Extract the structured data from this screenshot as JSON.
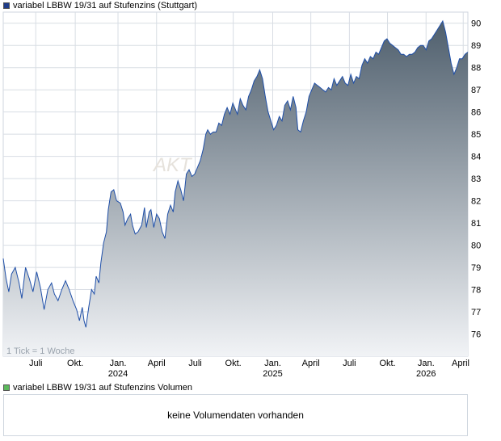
{
  "price_legend": {
    "label": "variabel LBBW 19/31 auf Stufenzins (Stuttgart)",
    "color": "#1f3d8a"
  },
  "volume_legend": {
    "label": "variabel LBBW 19/31 auf Stufenzins Volumen",
    "color": "#5cb85c"
  },
  "tick_note": "1 Tick = 1 Woche",
  "watermark": "AKT",
  "volume_message": "keine Volumendaten vorhanden",
  "colors": {
    "line": "#1f4fa8",
    "area_top": "#4f5f6d",
    "area_bottom": "#f1f3f6",
    "grid": "#d8dde4"
  },
  "chart_data": {
    "type": "area",
    "title": "variabel LBBW 19/31 auf Stufenzins (Stuttgart)",
    "ylim": [
      75,
      90.5
    ],
    "y_ticks": [
      76,
      77,
      78,
      79,
      80,
      81,
      82,
      83,
      84,
      85,
      86,
      87,
      88,
      89,
      90
    ],
    "x_ticks": [
      {
        "label": "Juli",
        "year": "",
        "pos": 0.07
      },
      {
        "label": "Okt.",
        "year": "",
        "pos": 0.155
      },
      {
        "label": "Jan.",
        "year": "2024",
        "pos": 0.247
      },
      {
        "label": "April",
        "year": "",
        "pos": 0.33
      },
      {
        "label": "Juli",
        "year": "",
        "pos": 0.413
      },
      {
        "label": "Okt.",
        "year": "",
        "pos": 0.495
      },
      {
        "label": "Jan.",
        "year": "2025",
        "pos": 0.58
      },
      {
        "label": "April",
        "year": "",
        "pos": 0.662
      },
      {
        "label": "Juli",
        "year": "",
        "pos": 0.745
      },
      {
        "label": "Okt.",
        "year": "",
        "pos": 0.827
      },
      {
        "label": "Jan.",
        "year": "2026",
        "pos": 0.91
      },
      {
        "label": "April",
        "year": "",
        "pos": 0.99
      }
    ],
    "series": [
      {
        "values": [
          [
            0.0,
            79.4
          ],
          [
            0.006,
            78.5
          ],
          [
            0.012,
            77.9
          ],
          [
            0.018,
            78.7
          ],
          [
            0.026,
            79.0
          ],
          [
            0.034,
            78.3
          ],
          [
            0.04,
            77.6
          ],
          [
            0.048,
            79.0
          ],
          [
            0.056,
            78.5
          ],
          [
            0.064,
            77.9
          ],
          [
            0.072,
            78.8
          ],
          [
            0.08,
            78.1
          ],
          [
            0.088,
            77.1
          ],
          [
            0.096,
            78.0
          ],
          [
            0.104,
            78.3
          ],
          [
            0.11,
            77.8
          ],
          [
            0.118,
            77.5
          ],
          [
            0.126,
            78.0
          ],
          [
            0.134,
            78.4
          ],
          [
            0.142,
            78.0
          ],
          [
            0.15,
            77.5
          ],
          [
            0.158,
            77.1
          ],
          [
            0.164,
            76.6
          ],
          [
            0.17,
            77.2
          ],
          [
            0.174,
            76.6
          ],
          [
            0.178,
            76.3
          ],
          [
            0.184,
            77.2
          ],
          [
            0.19,
            78.0
          ],
          [
            0.196,
            77.8
          ],
          [
            0.2,
            78.6
          ],
          [
            0.206,
            78.3
          ],
          [
            0.21,
            79.2
          ],
          [
            0.216,
            80.1
          ],
          [
            0.222,
            80.6
          ],
          [
            0.226,
            81.6
          ],
          [
            0.232,
            82.4
          ],
          [
            0.238,
            82.5
          ],
          [
            0.244,
            82.0
          ],
          [
            0.252,
            81.9
          ],
          [
            0.258,
            81.5
          ],
          [
            0.262,
            80.9
          ],
          [
            0.268,
            81.2
          ],
          [
            0.274,
            81.4
          ],
          [
            0.278,
            80.9
          ],
          [
            0.284,
            80.5
          ],
          [
            0.29,
            80.6
          ],
          [
            0.298,
            80.9
          ],
          [
            0.304,
            81.7
          ],
          [
            0.308,
            80.8
          ],
          [
            0.314,
            81.5
          ],
          [
            0.318,
            81.6
          ],
          [
            0.324,
            80.8
          ],
          [
            0.33,
            81.4
          ],
          [
            0.336,
            81.2
          ],
          [
            0.342,
            80.6
          ],
          [
            0.348,
            80.3
          ],
          [
            0.354,
            81.4
          ],
          [
            0.36,
            81.8
          ],
          [
            0.366,
            81.5
          ],
          [
            0.37,
            82.4
          ],
          [
            0.376,
            82.9
          ],
          [
            0.382,
            82.5
          ],
          [
            0.388,
            82.0
          ],
          [
            0.394,
            83.2
          ],
          [
            0.4,
            83.4
          ],
          [
            0.406,
            83.1
          ],
          [
            0.412,
            83.2
          ],
          [
            0.418,
            83.5
          ],
          [
            0.424,
            83.8
          ],
          [
            0.43,
            84.3
          ],
          [
            0.436,
            85.0
          ],
          [
            0.44,
            85.2
          ],
          [
            0.446,
            85.0
          ],
          [
            0.452,
            85.1
          ],
          [
            0.458,
            85.1
          ],
          [
            0.464,
            85.5
          ],
          [
            0.47,
            85.4
          ],
          [
            0.476,
            85.9
          ],
          [
            0.482,
            86.2
          ],
          [
            0.488,
            85.9
          ],
          [
            0.494,
            86.4
          ],
          [
            0.498,
            86.2
          ],
          [
            0.504,
            85.9
          ],
          [
            0.51,
            86.6
          ],
          [
            0.516,
            86.3
          ],
          [
            0.522,
            86.1
          ],
          [
            0.528,
            86.7
          ],
          [
            0.534,
            87.0
          ],
          [
            0.54,
            87.4
          ],
          [
            0.546,
            87.6
          ],
          [
            0.552,
            87.9
          ],
          [
            0.558,
            87.5
          ],
          [
            0.564,
            86.7
          ],
          [
            0.57,
            86.0
          ],
          [
            0.576,
            85.6
          ],
          [
            0.582,
            85.2
          ],
          [
            0.588,
            85.4
          ],
          [
            0.594,
            85.8
          ],
          [
            0.6,
            85.6
          ],
          [
            0.606,
            86.3
          ],
          [
            0.612,
            86.5
          ],
          [
            0.618,
            86.1
          ],
          [
            0.624,
            86.7
          ],
          [
            0.63,
            86.2
          ],
          [
            0.634,
            85.2
          ],
          [
            0.64,
            85.1
          ],
          [
            0.646,
            85.6
          ],
          [
            0.652,
            86.0
          ],
          [
            0.658,
            86.7
          ],
          [
            0.664,
            87.0
          ],
          [
            0.67,
            87.3
          ],
          [
            0.676,
            87.2
          ],
          [
            0.682,
            87.1
          ],
          [
            0.688,
            87.0
          ],
          [
            0.694,
            86.9
          ],
          [
            0.7,
            87.1
          ],
          [
            0.706,
            87.0
          ],
          [
            0.712,
            87.5
          ],
          [
            0.718,
            87.2
          ],
          [
            0.724,
            87.4
          ],
          [
            0.73,
            87.6
          ],
          [
            0.736,
            87.3
          ],
          [
            0.742,
            87.2
          ],
          [
            0.748,
            87.7
          ],
          [
            0.754,
            87.3
          ],
          [
            0.76,
            87.6
          ],
          [
            0.766,
            87.5
          ],
          [
            0.772,
            88.1
          ],
          [
            0.778,
            88.4
          ],
          [
            0.784,
            88.2
          ],
          [
            0.79,
            88.5
          ],
          [
            0.796,
            88.4
          ],
          [
            0.802,
            88.7
          ],
          [
            0.808,
            88.6
          ],
          [
            0.814,
            88.9
          ],
          [
            0.82,
            89.2
          ],
          [
            0.826,
            89.3
          ],
          [
            0.832,
            89.1
          ],
          [
            0.838,
            89.0
          ],
          [
            0.844,
            88.9
          ],
          [
            0.85,
            88.8
          ],
          [
            0.856,
            88.6
          ],
          [
            0.862,
            88.6
          ],
          [
            0.868,
            88.5
          ],
          [
            0.874,
            88.6
          ],
          [
            0.88,
            88.6
          ],
          [
            0.886,
            88.7
          ],
          [
            0.892,
            88.9
          ],
          [
            0.898,
            89.0
          ],
          [
            0.904,
            89.0
          ],
          [
            0.91,
            88.8
          ],
          [
            0.916,
            89.2
          ],
          [
            0.922,
            89.3
          ],
          [
            0.928,
            89.5
          ],
          [
            0.934,
            89.7
          ],
          [
            0.94,
            89.9
          ],
          [
            0.946,
            90.1
          ],
          [
            0.952,
            89.6
          ],
          [
            0.958,
            88.9
          ],
          [
            0.964,
            88.2
          ],
          [
            0.97,
            87.7
          ],
          [
            0.976,
            88.0
          ],
          [
            0.982,
            88.4
          ],
          [
            0.988,
            88.4
          ],
          [
            0.994,
            88.6
          ],
          [
            1.0,
            88.7
          ]
        ]
      }
    ]
  }
}
